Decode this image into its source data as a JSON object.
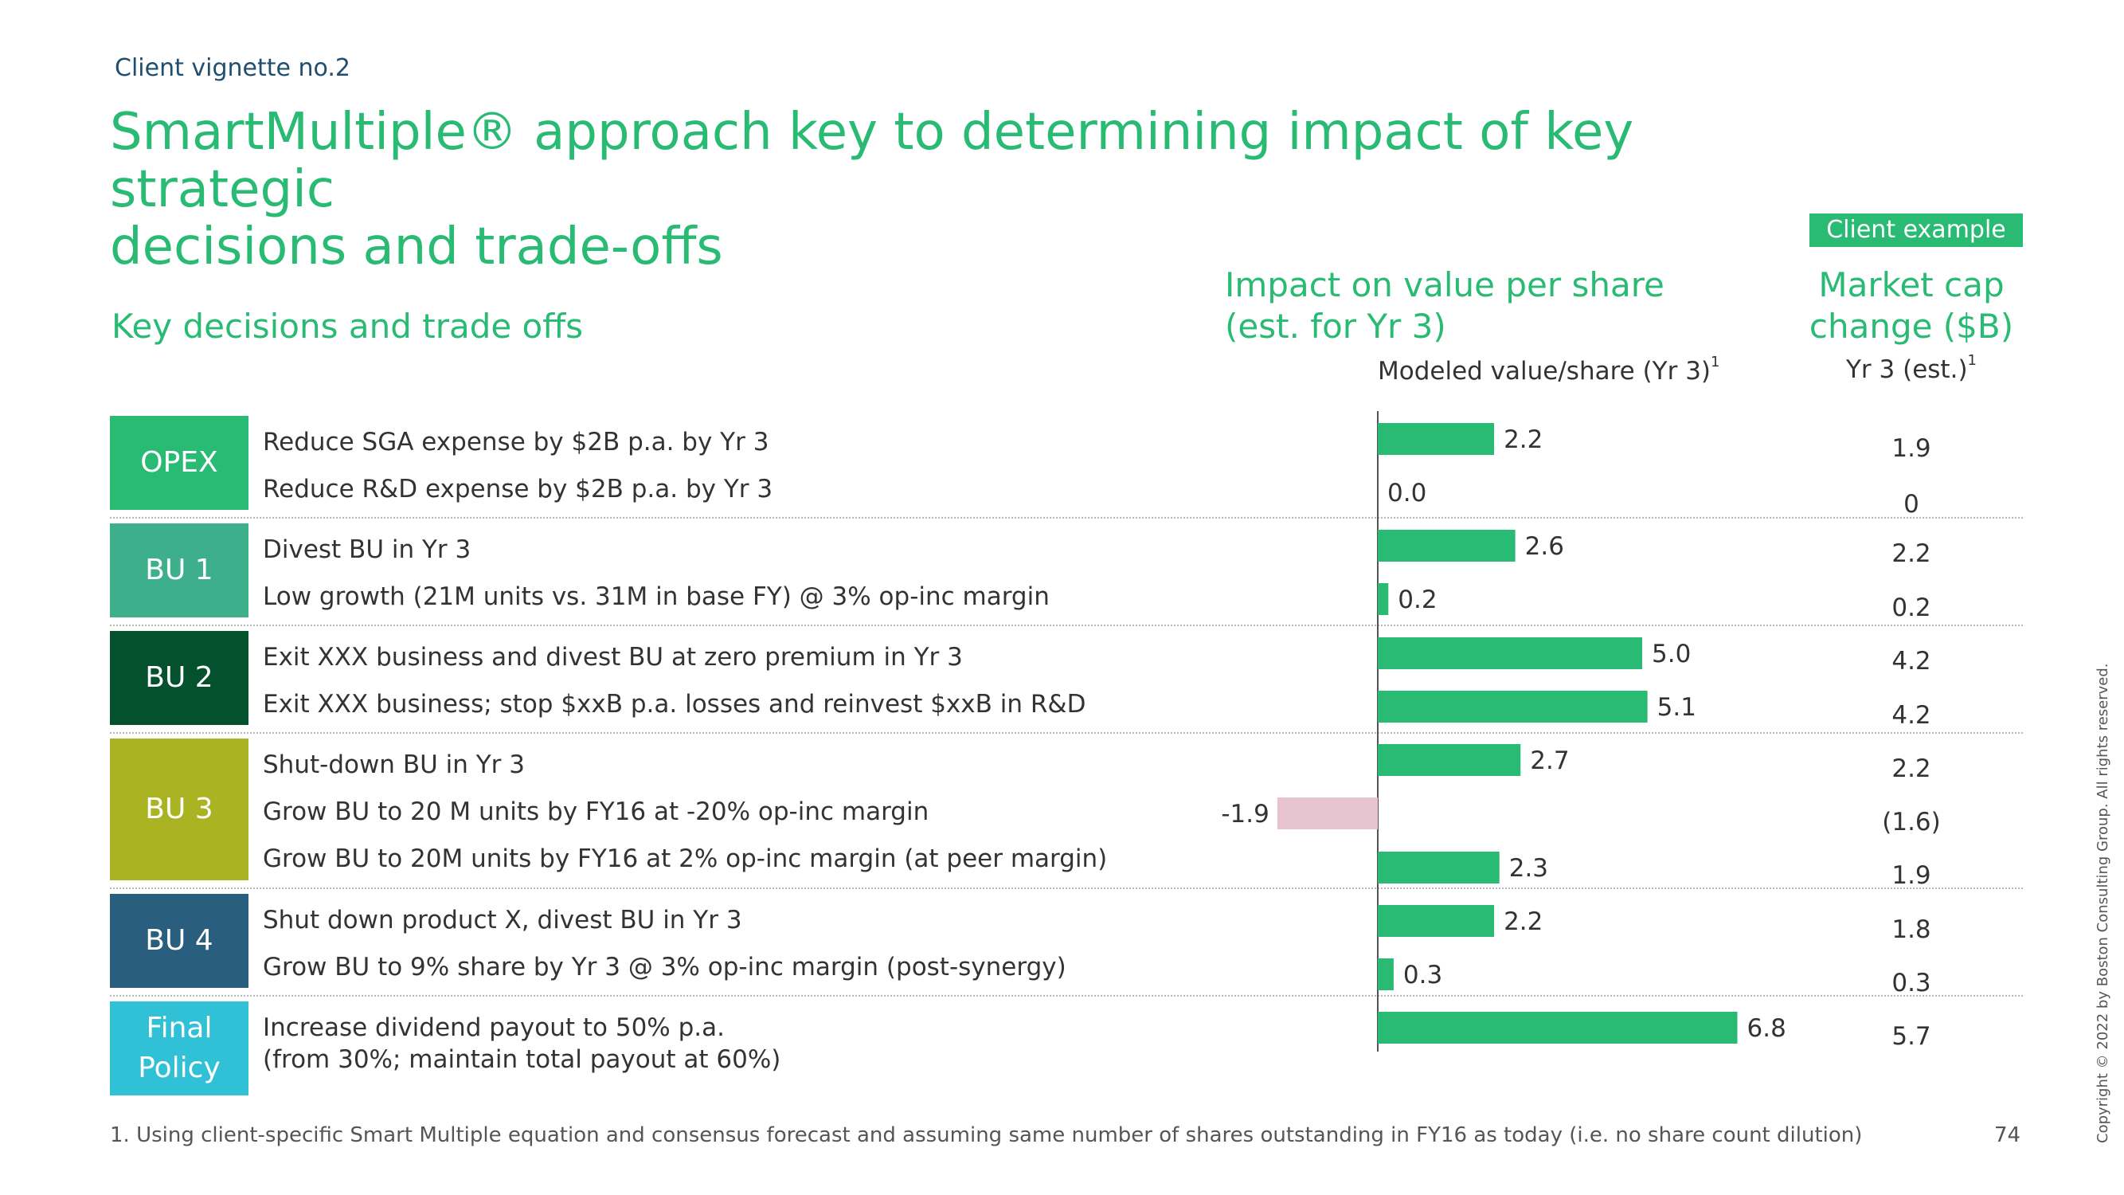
{
  "header": {
    "vignette": "Client vignette no.2",
    "title_line1": "SmartMultiple® approach key to determining impact of key strategic",
    "title_line2": "decisions and trade-offs",
    "client_example": "Client example"
  },
  "columns": {
    "left_header": "Key decisions and trade offs",
    "impact_line1": "Impact on value per share",
    "impact_line2": "(est. for Yr 3)",
    "modeled_label": "Modeled value/share (Yr 3)",
    "modeled_sup": "1",
    "mcap_line1": "Market cap",
    "mcap_line2": "change ($B)",
    "yr3_label": "Yr 3 (est.)",
    "yr3_sup": "1"
  },
  "categories": [
    {
      "label": "OPEX",
      "color": "#29ba74"
    },
    {
      "label": "BU 1",
      "color": "#3eaf8b"
    },
    {
      "label": "BU 2",
      "color": "#03522d"
    },
    {
      "label": "BU 3",
      "color": "#aab423"
    },
    {
      "label": "BU 4",
      "color": "#295e7e"
    },
    {
      "label_line1": "Final",
      "label_line2": "Policy",
      "color": "#30c1d7"
    }
  ],
  "rows": [
    {
      "label": "Reduce SGA expense by $2B p.a. by Yr 3",
      "mcap": "1.9"
    },
    {
      "label": "Reduce R&D expense by $2B p.a. by Yr 3",
      "mcap": "0"
    },
    {
      "label": "Divest BU in Yr 3",
      "mcap": "2.2"
    },
    {
      "label": "Low growth (21M units vs. 31M in base FY) @ 3% op-inc margin",
      "mcap": "0.2"
    },
    {
      "label": "Exit XXX business and divest BU at zero premium in Yr 3",
      "mcap": "4.2"
    },
    {
      "label": "Exit XXX business; stop $xxB p.a. losses and reinvest $xxB in R&D",
      "mcap": "4.2"
    },
    {
      "label": "Shut-down BU in Yr 3",
      "mcap": "2.2"
    },
    {
      "label": "Grow BU to 20 M units by FY16 at -20% op-inc margin",
      "mcap": "(1.6)"
    },
    {
      "label": "Grow BU to 20M units by FY16 at 2% op-inc margin (at peer margin)",
      "mcap": "1.9"
    },
    {
      "label": "Shut down product X, divest BU in Yr 3",
      "mcap": "1.8"
    },
    {
      "label": "Grow BU to 9% share by Yr 3 @ 3% op-inc margin (post-synergy)",
      "mcap": "0.3"
    },
    {
      "label_line1": "Increase dividend payout to 50% p.a.",
      "label_line2": "(from 30%; maintain total payout at 60%)",
      "mcap": "5.7"
    }
  ],
  "chart_data": {
    "type": "bar",
    "orientation": "horizontal",
    "xlabel": "Modeled value/share (Yr 3)",
    "categories": [
      "Reduce SGA expense by $2B p.a. by Yr 3",
      "Reduce R&D expense by $2B p.a. by Yr 3",
      "Divest BU in Yr 3",
      "Low growth (21M units vs. 31M in base FY) @ 3% op-inc margin",
      "Exit XXX business and divest BU at zero premium in Yr 3",
      "Exit XXX business; stop $xxB p.a. losses and reinvest $xxB in R&D",
      "Shut-down BU in Yr 3",
      "Grow BU to 20 M units by FY16 at -20% op-inc margin",
      "Grow BU to 20M units by FY16 at 2% op-inc margin (at peer margin)",
      "Shut down product X, divest BU in Yr 3",
      "Grow BU to 9% share by Yr 3 @ 3% op-inc margin (post-synergy)",
      "Increase dividend payout to 50% p.a. (from 30%; maintain total payout at 60%)"
    ],
    "values": [
      2.2,
      0.0,
      2.6,
      0.2,
      5.0,
      5.1,
      2.7,
      -1.9,
      2.3,
      2.2,
      0.3,
      6.8
    ],
    "value_labels": [
      "2.2",
      "0.0",
      "2.6",
      "0.2",
      "5.0",
      "5.1",
      "2.7",
      "-1.9",
      "2.3",
      "2.2",
      "0.3",
      "6.8"
    ],
    "positive_color": "#29ba74",
    "negative_color": "#e8c4d0"
  },
  "footer": {
    "footnote": "1. Using client-specific Smart Multiple equation and consensus forecast and assuming same number of shares outstanding in FY16 as today (i.e. no share count dilution)",
    "page_number": "74",
    "copyright": "Copyright © 2022 by Boston Consulting Group. All rights reserved."
  }
}
